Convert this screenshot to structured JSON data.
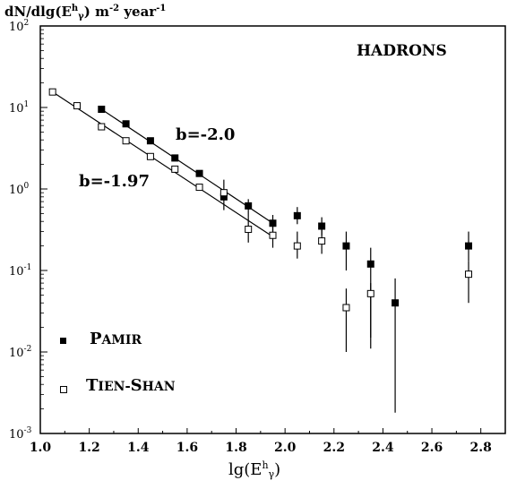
{
  "chart_data": {
    "type": "scatter",
    "title": "",
    "ylabel": "dN/dlg(E^h_γ) m^-2 year^-1",
    "xlabel": "lg(E^h_γ)",
    "annotation": "HADRONS",
    "xlim": [
      1.0,
      2.9
    ],
    "ylim_log10": [
      -3,
      2
    ],
    "yscale": "log",
    "x_ticks": [
      "1.0",
      "1.2",
      "1.4",
      "1.6",
      "1.8",
      "2.0",
      "2.2",
      "2.4",
      "2.6",
      "2.8"
    ],
    "y_ticks": [
      {
        "base": "10",
        "exp": "-3"
      },
      {
        "base": "10",
        "exp": "-2"
      },
      {
        "base": "10",
        "exp": "-1"
      },
      {
        "base": "10",
        "exp": "0"
      },
      {
        "base": "10",
        "exp": "1"
      },
      {
        "base": "10",
        "exp": "2"
      }
    ],
    "grid": false,
    "legend_position": "bottom-left",
    "series": [
      {
        "name": "Pamir",
        "marker": "filled-square",
        "color": "#000000",
        "x": [
          1.25,
          1.35,
          1.45,
          1.55,
          1.65,
          1.75,
          1.85,
          1.95,
          2.05,
          2.15,
          2.25,
          2.35,
          2.45,
          2.75
        ],
        "y": [
          9.5,
          6.3,
          3.9,
          2.4,
          1.55,
          0.8,
          0.62,
          0.38,
          0.47,
          0.35,
          0.2,
          0.12,
          0.04,
          0.2
        ],
        "err_low": [
          null,
          null,
          null,
          null,
          null,
          null,
          0.45,
          0.27,
          0.37,
          0.27,
          0.1,
          0.011,
          0.0018,
          0.13
        ],
        "err_high": [
          null,
          null,
          null,
          null,
          null,
          null,
          0.75,
          0.48,
          0.6,
          0.45,
          0.3,
          0.19,
          0.08,
          0.3
        ]
      },
      {
        "name": "Tien-Shan",
        "marker": "open-square",
        "color": "#000000",
        "x": [
          1.05,
          1.15,
          1.25,
          1.35,
          1.45,
          1.55,
          1.65,
          1.75,
          1.85,
          1.95,
          2.05,
          2.15,
          2.25,
          2.35,
          2.75
        ],
        "y": [
          15.5,
          10.5,
          5.8,
          3.9,
          2.5,
          1.75,
          1.05,
          0.9,
          0.32,
          0.27,
          0.2,
          0.23,
          0.035,
          0.052,
          0.09
        ],
        "err_low": [
          null,
          null,
          null,
          null,
          null,
          null,
          null,
          0.55,
          0.22,
          0.19,
          0.14,
          0.16,
          0.01,
          0.015,
          0.04
        ],
        "err_high": [
          null,
          null,
          null,
          null,
          null,
          null,
          null,
          1.3,
          0.45,
          0.38,
          0.3,
          0.33,
          0.06,
          0.07,
          0.13
        ]
      }
    ],
    "fits": [
      {
        "label": "b=-2.0",
        "x": [
          1.25,
          1.95
        ],
        "y": [
          9.5,
          0.38
        ]
      },
      {
        "label": "b=-1.97",
        "x": [
          1.05,
          1.95
        ],
        "y": [
          15.5,
          0.26
        ]
      }
    ]
  }
}
